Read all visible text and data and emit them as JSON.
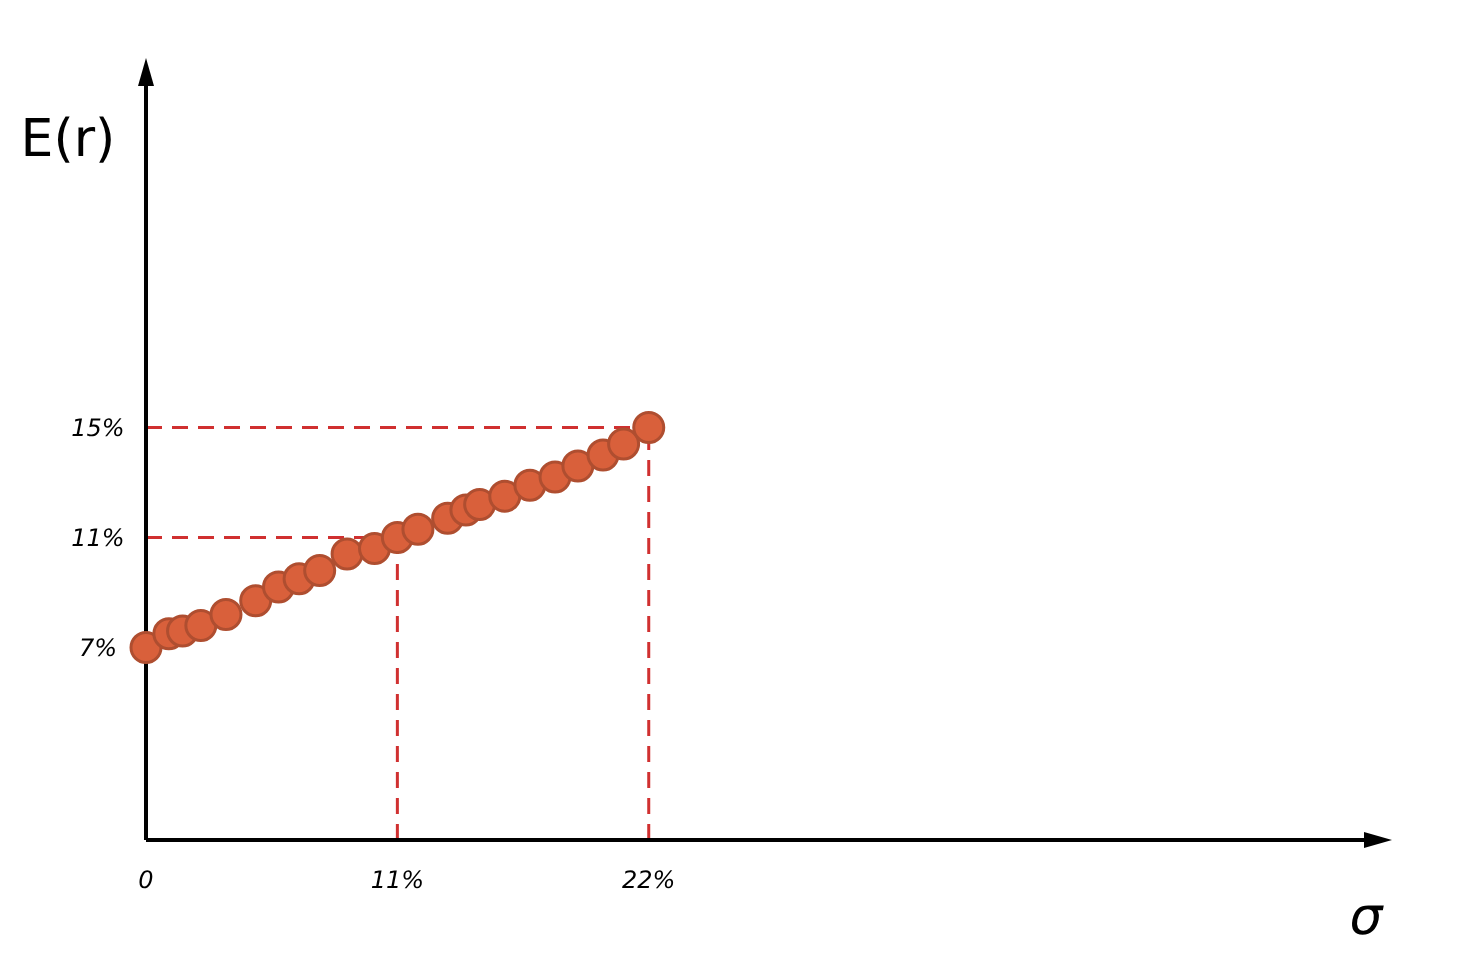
{
  "chart_data": {
    "type": "scatter",
    "xlabel": "σ",
    "ylabel": "E(r)",
    "x": [
      0,
      1.0,
      1.6,
      2.4,
      3.5,
      4.8,
      5.8,
      6.7,
      7.6,
      8.8,
      10.0,
      11,
      11.9,
      13.2,
      14.0,
      14.6,
      15.7,
      16.8,
      17.9,
      18.9,
      20.0,
      20.9,
      22
    ],
    "series": [
      {
        "color": "#d9603b",
        "values": [
          7.0,
          7.5,
          7.6,
          7.8,
          8.2,
          8.7,
          9.2,
          9.5,
          9.8,
          10.4,
          10.6,
          11.0,
          11.3,
          11.7,
          12.0,
          12.2,
          12.5,
          12.9,
          13.2,
          13.6,
          14.0,
          14.4,
          15.0
        ]
      }
    ],
    "xlim": [
      0,
      54
    ],
    "ylim": [
      0,
      28
    ],
    "xticks": [
      0,
      {
        "value": 11,
        "label": "11%"
      },
      {
        "value": 22,
        "label": "22%"
      }
    ],
    "yticks": [
      {
        "value": 7,
        "label": "7%"
      },
      {
        "value": 11,
        "label": "11%"
      },
      {
        "value": 15,
        "label": "15%"
      }
    ],
    "ref_lines": [
      {
        "axis": "y",
        "value": 15,
        "label": null,
        "color": "#d03030",
        "line_style": "dashed"
      },
      {
        "axis": "y",
        "value": 11,
        "label": null,
        "color": "#d03030",
        "line_style": "dashed"
      },
      {
        "axis": "x",
        "value": 11,
        "label": null,
        "color": "#d03030",
        "line_style": "dashed"
      },
      {
        "axis": "x",
        "value": 22,
        "label": null,
        "color": "#d03030",
        "line_style": "dashed"
      }
    ],
    "marker": "circle",
    "grid": false
  }
}
